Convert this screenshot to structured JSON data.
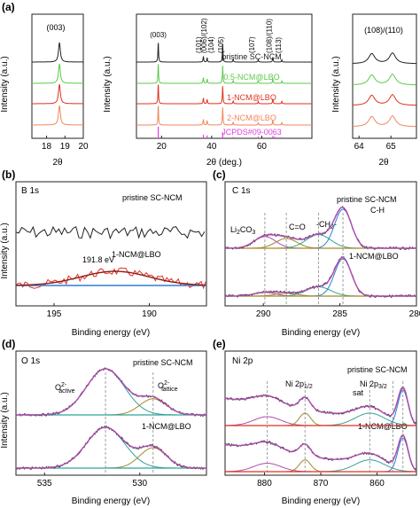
{
  "figure": {
    "panel_letters": [
      "(a)",
      "(b)",
      "(c)",
      "(d)",
      "(e)"
    ]
  },
  "colors": {
    "black": "#222222",
    "green": "#5cc94a",
    "red": "#e0311f",
    "orange": "#f0865a",
    "magenta": "#e040e0",
    "blue": "#2f7fd0",
    "purple": "#b04cb0",
    "olive": "#a08a2c",
    "teal": "#2ea39a",
    "darkred": "#8a1a1a"
  },
  "chart_data": [
    {
      "id": "a-left",
      "type": "line",
      "panel": "(a)",
      "xlabel": "2θ",
      "ylabel": "Intensity (a.u.)",
      "xlim": [
        17.2,
        20.0
      ],
      "xticks": [
        18,
        19,
        20
      ],
      "annotations": [
        "(003)"
      ],
      "series": [
        {
          "color": "#222222",
          "peaks": [
            {
              "x": 18.7,
              "h": 1.0
            }
          ]
        },
        {
          "color": "#5cc94a",
          "peaks": [
            {
              "x": 18.7,
              "h": 1.0
            }
          ]
        },
        {
          "color": "#e0311f",
          "peaks": [
            {
              "x": 18.7,
              "h": 1.0
            }
          ]
        },
        {
          "color": "#f0865a",
          "peaks": [
            {
              "x": 18.7,
              "h": 1.0
            }
          ]
        }
      ]
    },
    {
      "id": "a-mid",
      "type": "line",
      "panel": "(a)",
      "xlabel": "2θ (deg.)",
      "ylabel": "Intensity (a.u.)",
      "xlim": [
        10,
        80
      ],
      "xticks": [
        20,
        40,
        60,
        80
      ],
      "annotations": [
        "(003)",
        "(101)",
        "(006)/(102)",
        "(104)",
        "(105)",
        "(107)",
        "(108)/(110)",
        "(113)"
      ],
      "peaks": [
        18.7,
        36.7,
        38.2,
        44.4,
        48.6,
        58.6,
        64.4,
        68.0
      ],
      "series": [
        {
          "name": "pristine SC-NCM",
          "color": "#222222",
          "heights": [
            1.0,
            0.3,
            0.22,
            0.9,
            0.15,
            0.12,
            0.25,
            0.12
          ]
        },
        {
          "name": "0.5-NCM@LBO",
          "color": "#5cc94a",
          "heights": [
            1.0,
            0.3,
            0.22,
            0.9,
            0.15,
            0.12,
            0.25,
            0.12
          ]
        },
        {
          "name": "1-NCM@LBO",
          "color": "#e0311f",
          "heights": [
            1.0,
            0.3,
            0.22,
            0.9,
            0.15,
            0.12,
            0.25,
            0.12
          ]
        },
        {
          "name": "2-NCM@LBO",
          "color": "#f0865a",
          "heights": [
            1.0,
            0.3,
            0.22,
            0.9,
            0.15,
            0.12,
            0.25,
            0.12
          ]
        }
      ],
      "reference": {
        "name": "JCPDS#09-0063",
        "color": "#e040e0",
        "sticks": [
          {
            "x": 18.7,
            "h": 1.0
          },
          {
            "x": 36.7,
            "h": 0.3
          },
          {
            "x": 38.2,
            "h": 0.25
          },
          {
            "x": 44.4,
            "h": 0.55
          },
          {
            "x": 48.6,
            "h": 0.12
          },
          {
            "x": 58.6,
            "h": 0.15
          },
          {
            "x": 64.4,
            "h": 0.2
          },
          {
            "x": 65.1,
            "h": 0.15
          },
          {
            "x": 68.0,
            "h": 0.1
          }
        ]
      }
    },
    {
      "id": "a-right",
      "type": "line",
      "panel": "(a)",
      "xlabel": "2θ",
      "ylabel": "",
      "xlim": [
        63.8,
        65.8
      ],
      "xticks": [
        64,
        65
      ],
      "annotations": [
        "(108)/(110)"
      ],
      "series": [
        {
          "color": "#222222",
          "peaks": [
            {
              "x": 64.4,
              "h": 0.8
            },
            {
              "x": 65.05,
              "h": 0.85
            }
          ]
        },
        {
          "color": "#5cc94a",
          "peaks": [
            {
              "x": 64.4,
              "h": 0.8
            },
            {
              "x": 65.05,
              "h": 0.85
            }
          ]
        },
        {
          "color": "#e0311f",
          "peaks": [
            {
              "x": 64.4,
              "h": 0.8
            },
            {
              "x": 65.05,
              "h": 0.85
            }
          ]
        },
        {
          "color": "#f0865a",
          "peaks": [
            {
              "x": 64.4,
              "h": 0.8
            },
            {
              "x": 65.05,
              "h": 0.85
            }
          ]
        }
      ]
    },
    {
      "id": "b",
      "type": "line",
      "panel": "(b)",
      "title": "B 1s",
      "xlabel": "Binding energy (eV)",
      "ylabel": "Intensity (a.u.)",
      "xlim": [
        197,
        187
      ],
      "xticks": [
        195,
        190
      ],
      "series": [
        {
          "name": "pristine SC-NCM",
          "color": "#222222",
          "kind": "noise"
        },
        {
          "name": "1-NCM@LBO",
          "color": "#e0311f",
          "kind": "noise"
        }
      ],
      "fits": [
        {
          "color": "#8a1a1a",
          "center": 191.8,
          "fwhm": 1.8
        }
      ],
      "annotations": [
        "191.8 eV"
      ]
    },
    {
      "id": "c",
      "type": "line",
      "panel": "(c)",
      "title": "C 1s",
      "xlabel": "Binding energy (eV)",
      "ylabel": "",
      "xlim": [
        292.5,
        280
      ],
      "xticks": [
        290,
        285,
        280
      ],
      "peaks": [
        {
          "name": "Li2CO3",
          "x": 289.9,
          "color": "#b04cb0"
        },
        {
          "name": "C=O",
          "x": 288.5,
          "color": "#a08a2c"
        },
        {
          "name": "-CH2-",
          "x": 286.4,
          "color": "#2ea39a"
        },
        {
          "name": "C-H",
          "x": 284.8,
          "color": "#2f7fd0"
        }
      ],
      "series": [
        {
          "name": "pristine SC-NCM",
          "heights": [
            0.3,
            0.25,
            0.35,
            1.0
          ]
        },
        {
          "name": "1-NCM@LBO",
          "heights": [
            0.1,
            0.08,
            0.25,
            1.0
          ]
        }
      ],
      "dashed_lines": [
        289.9,
        288.5,
        286.4,
        284.8
      ]
    },
    {
      "id": "d",
      "type": "line",
      "panel": "(d)",
      "title": "O 1s",
      "xlabel": "Binding energy (eV)",
      "ylabel": "Intensity (a.u.)",
      "xlim": [
        536.5,
        526.5
      ],
      "xticks": [
        535,
        530
      ],
      "peaks": [
        {
          "name": "O2- active",
          "x": 531.8,
          "color": "#2ea39a"
        },
        {
          "name": "O2- lattice",
          "x": 529.3,
          "color": "#a08a2c"
        }
      ],
      "series": [
        {
          "name": "pristine SC-NCM",
          "heights": [
            1.0,
            0.35
          ]
        },
        {
          "name": "1-NCM@LBO",
          "heights": [
            1.0,
            0.5
          ]
        }
      ],
      "dashed_lines": [
        531.8,
        529.3
      ]
    },
    {
      "id": "e",
      "type": "line",
      "panel": "(e)",
      "title": "Ni 2p",
      "xlabel": "Binding energy (eV)",
      "ylabel": "",
      "xlim": [
        887,
        853
      ],
      "xticks": [
        880,
        870,
        860
      ],
      "peaks": [
        {
          "name": "sat 2p1/2",
          "x": 879.5,
          "color": "#b04cb0"
        },
        {
          "name": "Ni 2p1/2",
          "x": 872.8,
          "color": "#a08a2c"
        },
        {
          "name": "sat",
          "x": 861.3,
          "color": "#2ea39a"
        },
        {
          "name": "Ni 2p3/2",
          "x": 855.4,
          "color": "#2f7fd0"
        }
      ],
      "dashed_lines": [
        879.5,
        872.8,
        861.3,
        857.2,
        855.4
      ]
    }
  ],
  "text": {
    "a_left_ann": "(003)",
    "a_left_xlabel": "2θ",
    "a_ylabel": "Intensity (a.u.)",
    "a_mid_xlabel": "2θ (deg.)",
    "a_mid_ann": [
      "(003)",
      "(101)",
      "(006)/(102)",
      "(104)",
      "(105)",
      "(107)",
      "(108)/(110)",
      "(113)"
    ],
    "a_right_ann": "(108)/(110)",
    "a_right_xlabel": "2θ",
    "a_legend": [
      "pristine SC-NCM",
      "0.5-NCM@LBO",
      "1-NCM@LBO",
      "2-NCM@LBO",
      "JCPDS#09-0063"
    ],
    "b_title": "B 1s",
    "b_top_label": "pristine SC-NCM",
    "b_bottom_label": "1-NCM@LBO",
    "b_ev": "191.8 eV",
    "xps_xlabel": "Binding energy (eV)",
    "c_title": "C 1s",
    "c_top_label": "pristine SC-NCM",
    "c_bottom_label": "1-NCM@LBO",
    "c_li2co3": "Li",
    "c_li2co3_sub": "2",
    "c_li2co3_rest": "CO",
    "c_li2co3_sub2": "3",
    "c_co": "C=O",
    "c_ch2": "-CH",
    "c_ch2_sub": "2",
    "c_ch2_tail": "-",
    "c_ch": "C-H",
    "d_title": "O 1s",
    "d_top_label": "pristine SC-NCM",
    "d_bottom_label": "1-NCM@LBO",
    "d_o": "O",
    "d_sup": "2-",
    "d_active": "active",
    "d_lattice": "lattice",
    "e_title": "Ni 2p",
    "e_top_label": "pristine SC-NCM",
    "e_bottom_label": "1-NCM@LBO",
    "e_ni2p12": "Ni 2p",
    "e_ni2p12_sub": "1/2",
    "e_ni2p32": "Ni 2p",
    "e_ni2p32_sub": "3/2",
    "e_sat": "sat"
  }
}
